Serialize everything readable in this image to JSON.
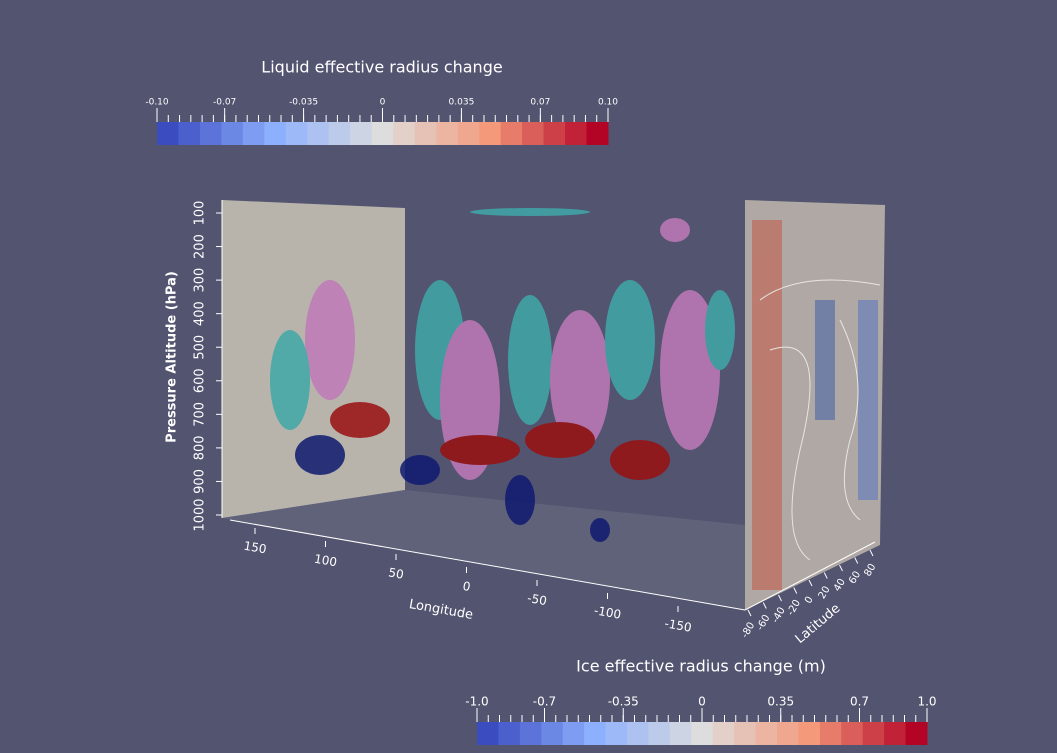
{
  "colorbars": [
    {
      "title": "Liquid effective radius change",
      "range": [
        -0.1,
        0.1
      ],
      "ticks": [
        {
          "value": -0.1,
          "label": "-0.10"
        },
        -0.07,
        -0.035,
        0,
        0.035,
        0.07,
        {
          "value": 0.1,
          "label": "0.10"
        }
      ]
    },
    {
      "title": "Ice effective radius change (m)",
      "range": [
        -1,
        1
      ],
      "ticks": [
        {
          "value": -1,
          "label": "-1.0"
        },
        -0.7,
        -0.35,
        0,
        0.35,
        0.7,
        {
          "value": 1,
          "label": "1.0"
        }
      ]
    }
  ],
  "axes": {
    "z_label": "Pressure Altitude (hPa)",
    "z_ticks": [
      100,
      200,
      300,
      400,
      500,
      600,
      700,
      800,
      900,
      1000
    ],
    "x_label": "Longitude",
    "x_ticks": [
      150,
      100,
      50,
      0,
      -50,
      -100,
      -150
    ],
    "y_label": "Latitude",
    "y_ticks": [
      -80,
      -60,
      -40,
      -20,
      0,
      20,
      40,
      60,
      80
    ]
  }
}
